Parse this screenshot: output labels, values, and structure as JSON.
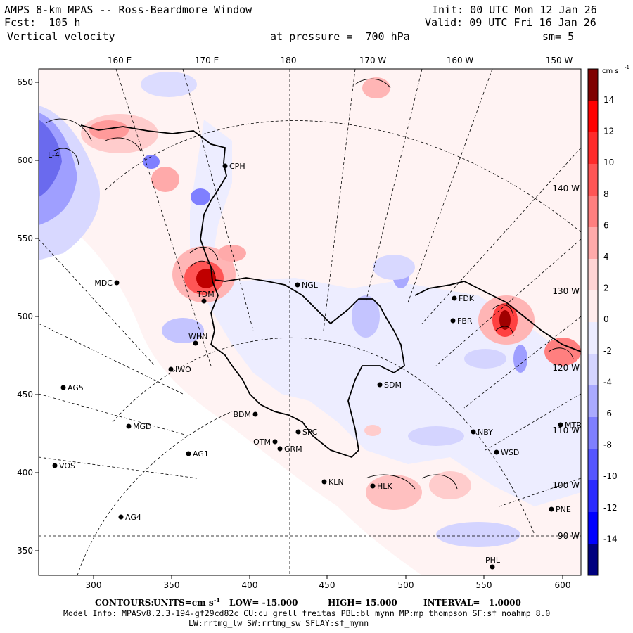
{
  "header": {
    "title": "AMPS 8-km MPAS -- Ross-Beardmore Window",
    "forecast": "Fcst:  105 h",
    "field": "Vertical velocity",
    "init": "Init: 00 UTC Mon 12 Jan 26",
    "valid": "Valid: 09 UTC Fri 16 Jan 26",
    "pressure": "at pressure =  700 hPa",
    "smooth": "sm= 5"
  },
  "axes": {
    "x_ticks": [
      "300",
      "350",
      "400",
      "450",
      "500",
      "550",
      "600"
    ],
    "y_ticks": [
      "650",
      "600",
      "550",
      "500",
      "450",
      "400",
      "350"
    ],
    "lon_top": [
      "160 E",
      "170 E",
      "180",
      "170 W",
      "160 W",
      "150 W"
    ],
    "lon_right": [
      "140 W",
      "130 W",
      "120 W",
      "110 W",
      "100 W",
      "90 W"
    ]
  },
  "colorbar": {
    "units": "cm s",
    "units_exp": "-1",
    "labels": [
      "14",
      "12",
      "10",
      "8",
      "6",
      "4",
      "2",
      "0",
      "-2",
      "-4",
      "-6",
      "-8",
      "-10",
      "-12",
      "-14"
    ],
    "colors": [
      "#00007f",
      "#0000ff",
      "#2a2aff",
      "#5555ff",
      "#7f7fff",
      "#aaaaff",
      "#d4d4ff",
      "#ececff",
      "#ffecec",
      "#ffd4d4",
      "#ffaaaa",
      "#ff7f7f",
      "#ff5555",
      "#ff2a2a",
      "#ff0000",
      "#7f0000"
    ]
  },
  "stations": [
    {
      "id": "CPH"
    },
    {
      "id": "MDC"
    },
    {
      "id": "NGL"
    },
    {
      "id": "TDM"
    },
    {
      "id": "FDK"
    },
    {
      "id": "FBR"
    },
    {
      "id": "WHN"
    },
    {
      "id": "IWO"
    },
    {
      "id": "AG5"
    },
    {
      "id": "SDM"
    },
    {
      "id": "BDM"
    },
    {
      "id": "MGD"
    },
    {
      "id": "OTM"
    },
    {
      "id": "SPC"
    },
    {
      "id": "GRM"
    },
    {
      "id": "NBY"
    },
    {
      "id": "MTR"
    },
    {
      "id": "AG1"
    },
    {
      "id": "WSD"
    },
    {
      "id": "VOS"
    },
    {
      "id": "KLN"
    },
    {
      "id": "HLK"
    },
    {
      "id": "PNE"
    },
    {
      "id": "AG4"
    },
    {
      "id": "PHL"
    },
    {
      "id": "L-4"
    }
  ],
  "footer": {
    "contours_label": "CONTOURS:",
    "units_label": "UNITS=cm s",
    "units_exp": "-1",
    "low": "LOW= -15.000",
    "high": "HIGH= 15.000",
    "interval": "INTERVAL=   1.0000",
    "model_info": "Model Info: MPASv8.2.3-194-gf29cd82c CU:cu_grell_freitas PBL:bl_mynn MP:mp_thompson SF:sf_noahmp 8.0",
    "model_info2": "LW:rrtmg_lw SW:rrtmg_sw SFLAY:sf_mynn"
  }
}
